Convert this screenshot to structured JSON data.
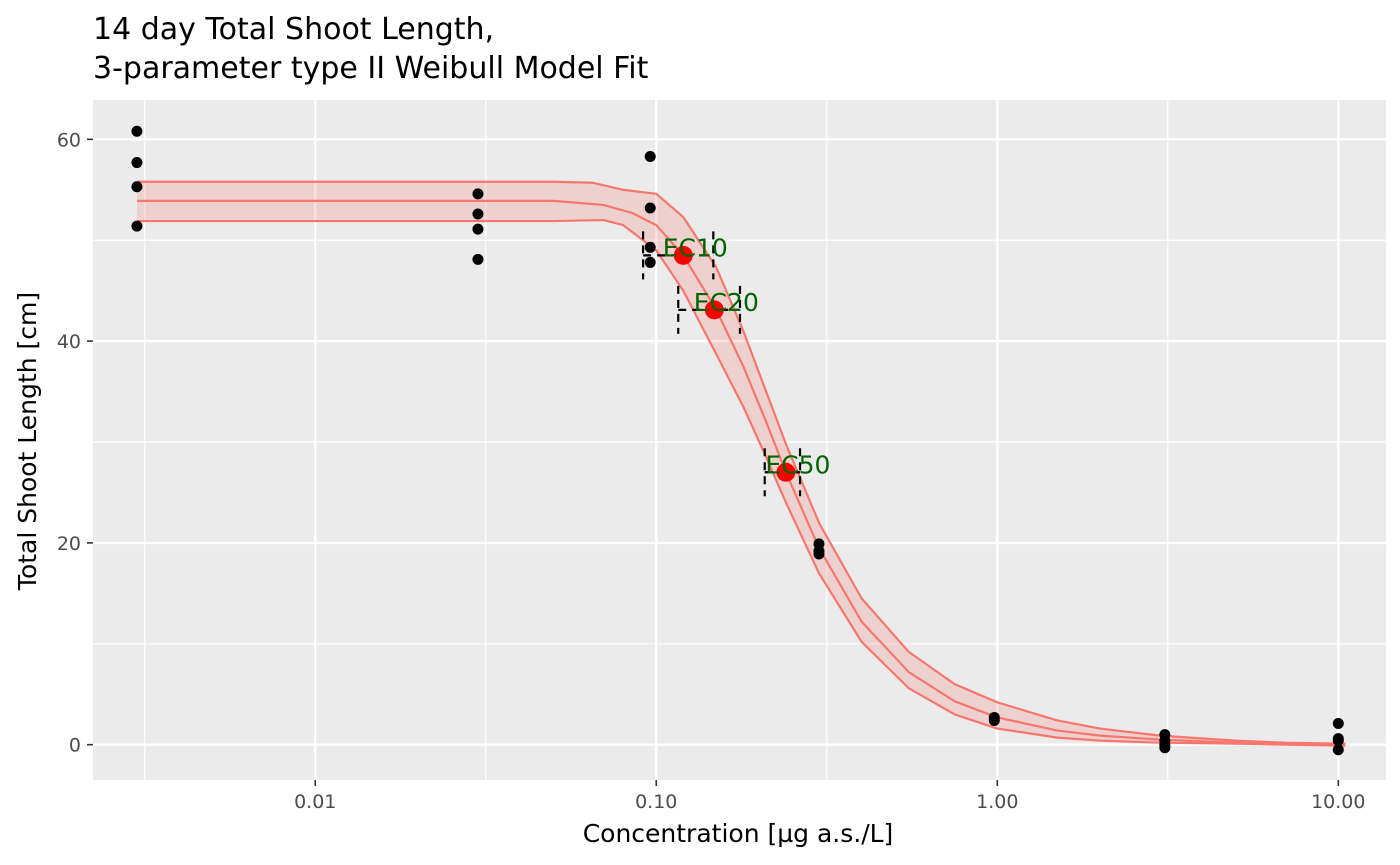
{
  "chart_data": {
    "type": "scatter",
    "title": [
      "14 day Total Shoot Length,",
      "3-parameter type II Weibull Model Fit"
    ],
    "xlabel": "Concentration [µg a.s./L]",
    "ylabel": "Total Shoot Length [cm]",
    "x_scale": "log10",
    "xlim": [
      0.00223,
      13.8
    ],
    "ylim": [
      -3.5,
      63.9
    ],
    "x_ticks": [
      {
        "value": 0.01,
        "label": "0.01"
      },
      {
        "value": 0.1,
        "label": "0.10"
      },
      {
        "value": 1,
        "label": "1.00"
      },
      {
        "value": 10,
        "label": "10.00"
      }
    ],
    "y_ticks": [
      {
        "value": 0,
        "label": "0"
      },
      {
        "value": 20,
        "label": "20"
      },
      {
        "value": 40,
        "label": "40"
      },
      {
        "value": 60,
        "label": "60"
      }
    ],
    "grid": true,
    "panel_background": "#ebebeb",
    "observations": [
      {
        "x": 0.003,
        "y": 60.8
      },
      {
        "x": 0.003,
        "y": 57.7
      },
      {
        "x": 0.003,
        "y": 55.3
      },
      {
        "x": 0.003,
        "y": 51.4
      },
      {
        "x": 0.03,
        "y": 54.6
      },
      {
        "x": 0.03,
        "y": 52.6
      },
      {
        "x": 0.03,
        "y": 51.1
      },
      {
        "x": 0.03,
        "y": 48.1
      },
      {
        "x": 0.096,
        "y": 58.3
      },
      {
        "x": 0.096,
        "y": 53.2
      },
      {
        "x": 0.096,
        "y": 49.3
      },
      {
        "x": 0.096,
        "y": 47.8
      },
      {
        "x": 0.3,
        "y": 19.9
      },
      {
        "x": 0.3,
        "y": 19.2
      },
      {
        "x": 0.3,
        "y": 18.9
      },
      {
        "x": 0.98,
        "y": 2.7
      },
      {
        "x": 0.98,
        "y": 2.4
      },
      {
        "x": 3.1,
        "y": 1.0
      },
      {
        "x": 3.1,
        "y": 0.4
      },
      {
        "x": 3.1,
        "y": 0.0
      },
      {
        "x": 3.1,
        "y": -0.3
      },
      {
        "x": 10,
        "y": 2.1
      },
      {
        "x": 10,
        "y": 0.6
      },
      {
        "x": 10,
        "y": 0.4
      },
      {
        "x": 10,
        "y": -0.5
      }
    ],
    "fit_curve": {
      "color": "#f8766d",
      "points": [
        {
          "x": 0.003,
          "y": 53.9
        },
        {
          "x": 0.01,
          "y": 53.9
        },
        {
          "x": 0.03,
          "y": 53.9
        },
        {
          "x": 0.05,
          "y": 53.9
        },
        {
          "x": 0.07,
          "y": 53.5
        },
        {
          "x": 0.085,
          "y": 52.7
        },
        {
          "x": 0.1,
          "y": 51.5
        },
        {
          "x": 0.12,
          "y": 48.5
        },
        {
          "x": 0.15,
          "y": 43.1
        },
        {
          "x": 0.18,
          "y": 37.5
        },
        {
          "x": 0.21,
          "y": 32.0
        },
        {
          "x": 0.24,
          "y": 27.0
        },
        {
          "x": 0.3,
          "y": 19.5
        },
        {
          "x": 0.4,
          "y": 12.2
        },
        {
          "x": 0.55,
          "y": 7.2
        },
        {
          "x": 0.75,
          "y": 4.3
        },
        {
          "x": 1.0,
          "y": 2.7
        },
        {
          "x": 1.5,
          "y": 1.4
        },
        {
          "x": 2.0,
          "y": 0.9
        },
        {
          "x": 3.0,
          "y": 0.5
        },
        {
          "x": 5.0,
          "y": 0.2
        },
        {
          "x": 7.0,
          "y": 0.1
        },
        {
          "x": 10.5,
          "y": 0.0
        }
      ],
      "band_upper": [
        {
          "x": 0.003,
          "y": 55.8
        },
        {
          "x": 0.01,
          "y": 55.8
        },
        {
          "x": 0.03,
          "y": 55.8
        },
        {
          "x": 0.05,
          "y": 55.8
        },
        {
          "x": 0.065,
          "y": 55.7
        },
        {
          "x": 0.08,
          "y": 55.0
        },
        {
          "x": 0.1,
          "y": 54.6
        },
        {
          "x": 0.12,
          "y": 52.3
        },
        {
          "x": 0.15,
          "y": 47.3
        },
        {
          "x": 0.18,
          "y": 41.0
        },
        {
          "x": 0.21,
          "y": 35.0
        },
        {
          "x": 0.24,
          "y": 29.8
        },
        {
          "x": 0.3,
          "y": 22.0
        },
        {
          "x": 0.4,
          "y": 14.5
        },
        {
          "x": 0.55,
          "y": 9.2
        },
        {
          "x": 0.75,
          "y": 6.0
        },
        {
          "x": 1.0,
          "y": 4.2
        },
        {
          "x": 1.5,
          "y": 2.4
        },
        {
          "x": 2.0,
          "y": 1.6
        },
        {
          "x": 3.0,
          "y": 0.9
        },
        {
          "x": 5.0,
          "y": 0.4
        },
        {
          "x": 7.0,
          "y": 0.2
        },
        {
          "x": 10.5,
          "y": 0.1
        }
      ],
      "band_lower": [
        {
          "x": 0.003,
          "y": 51.9
        },
        {
          "x": 0.01,
          "y": 51.9
        },
        {
          "x": 0.03,
          "y": 51.9
        },
        {
          "x": 0.05,
          "y": 51.9
        },
        {
          "x": 0.07,
          "y": 52.0
        },
        {
          "x": 0.08,
          "y": 51.5
        },
        {
          "x": 0.1,
          "y": 49.0
        },
        {
          "x": 0.12,
          "y": 45.0
        },
        {
          "x": 0.15,
          "y": 38.7
        },
        {
          "x": 0.18,
          "y": 33.5
        },
        {
          "x": 0.21,
          "y": 28.5
        },
        {
          "x": 0.24,
          "y": 24.0
        },
        {
          "x": 0.3,
          "y": 17.0
        },
        {
          "x": 0.4,
          "y": 10.2
        },
        {
          "x": 0.55,
          "y": 5.6
        },
        {
          "x": 0.75,
          "y": 3.0
        },
        {
          "x": 1.0,
          "y": 1.6
        },
        {
          "x": 1.5,
          "y": 0.7
        },
        {
          "x": 2.0,
          "y": 0.4
        },
        {
          "x": 3.0,
          "y": 0.2
        },
        {
          "x": 5.0,
          "y": 0.1
        },
        {
          "x": 7.0,
          "y": 0.0
        },
        {
          "x": 10.5,
          "y": -0.1
        }
      ]
    },
    "ec_estimates": [
      {
        "label": "EC10",
        "x": 0.12,
        "y": 48.5,
        "ci_low": 0.0915,
        "ci_high": 0.147,
        "label_color": "#006400",
        "point_color": "#ff0000"
      },
      {
        "label": "EC20",
        "x": 0.148,
        "y": 43.1,
        "ci_low": 0.116,
        "ci_high": 0.176,
        "label_color": "#006400",
        "point_color": "#ff0000"
      },
      {
        "label": "EC50",
        "x": 0.24,
        "y": 27.0,
        "ci_low": 0.208,
        "ci_high": 0.264,
        "label_color": "#006400",
        "point_color": "#ff0000"
      }
    ]
  }
}
